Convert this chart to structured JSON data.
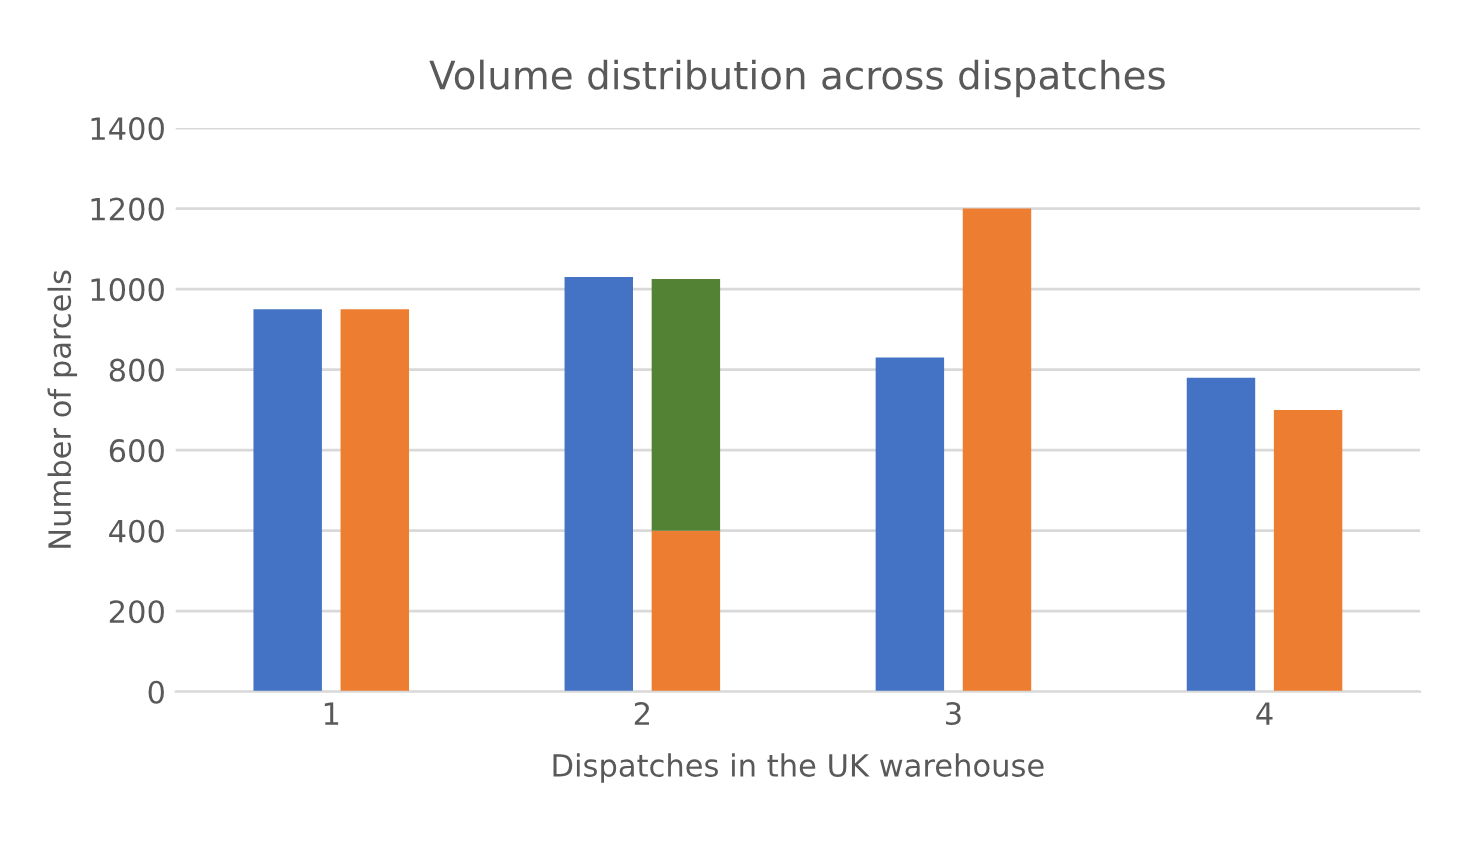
{
  "chart_data": {
    "type": "bar",
    "title": "Volume distribution across dispatches",
    "xlabel": "Dispatches in the UK warehouse",
    "ylabel": "Number of parcels",
    "categories": [
      "1",
      "2",
      "3",
      "4"
    ],
    "series": [
      {
        "color": "#4472c4",
        "values": [
          950,
          1030,
          830,
          780
        ]
      },
      {
        "color": "#ed7d31",
        "values": [
          950,
          400,
          1200,
          700
        ]
      },
      {
        "color": "#548235",
        "values": [
          null,
          625,
          null,
          null
        ],
        "base": [
          null,
          400,
          null,
          null
        ]
      }
    ],
    "ylim": [
      0,
      1400
    ],
    "yticks": [
      0,
      200,
      400,
      600,
      800,
      1000,
      1200,
      1400
    ],
    "grid": "y",
    "legend": false
  }
}
